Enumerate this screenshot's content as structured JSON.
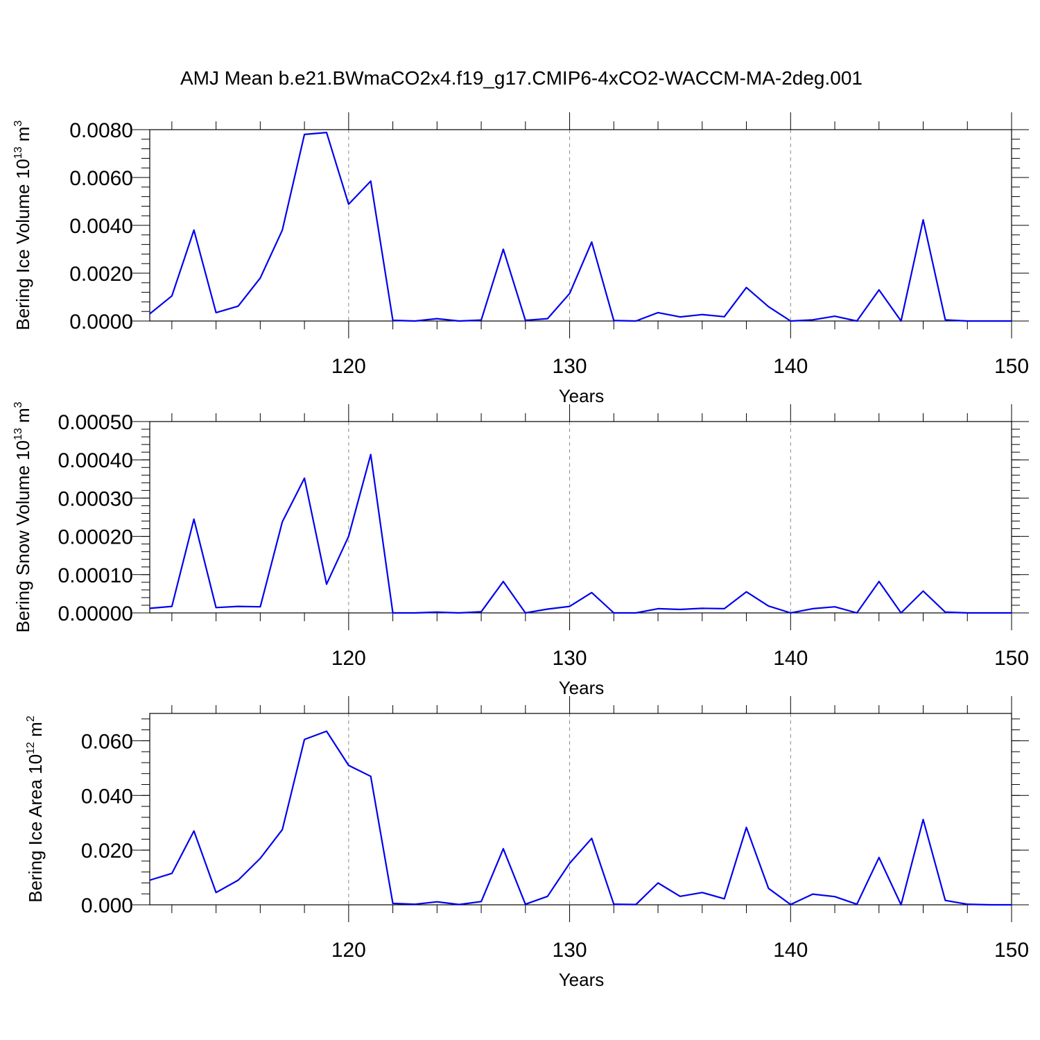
{
  "title": "AMJ Mean b.e21.BWmaCO2x4.f19_g17.CMIP6-4xCO2-WACCM-MA-2deg.001",
  "colors": {
    "line": "#0000ee",
    "axis": "#000000",
    "grid": "#888888"
  },
  "chart_data": [
    {
      "type": "line",
      "xlabel": "Years",
      "ylabel": {
        "main": "Bering Ice Volume 10",
        "exp": "13",
        "unit": " m",
        "unit_exp": "3"
      },
      "xlim": [
        111,
        150
      ],
      "ylim": [
        0,
        0.008
      ],
      "x_ticks": [
        120,
        130,
        140,
        150
      ],
      "x_tick_labels": [
        "120",
        "130",
        "140",
        "150"
      ],
      "y_ticks": [
        0,
        0.002,
        0.004,
        0.006,
        0.008
      ],
      "y_tick_labels": [
        "0.0000",
        "0.0020",
        "0.0040",
        "0.0060",
        "0.0080"
      ],
      "grid": "dashed vertical at major x ticks",
      "x": [
        111,
        112,
        113,
        114,
        115,
        116,
        117,
        118,
        119,
        120,
        121,
        122,
        123,
        124,
        125,
        126,
        127,
        128,
        129,
        130,
        131,
        132,
        133,
        134,
        135,
        136,
        137,
        138,
        139,
        140,
        141,
        142,
        143,
        144,
        145,
        146,
        147,
        148,
        149,
        150
      ],
      "values": [
        0.0003,
        0.00105,
        0.0038,
        0.00035,
        0.00062,
        0.0018,
        0.0038,
        0.0078,
        0.00788,
        0.00488,
        0.00585,
        3e-05,
        0.0,
        0.0001,
        0.0,
        4e-05,
        0.003,
        3e-05,
        0.0001,
        0.00115,
        0.0033,
        2e-05,
        0.0,
        0.00035,
        0.00017,
        0.00027,
        0.00018,
        0.0014,
        0.0006,
        0.0,
        5e-05,
        0.0002,
        0.0,
        0.0013,
        0.0,
        0.00423,
        5e-05,
        0.0,
        0.0,
        0.0
      ]
    },
    {
      "type": "line",
      "xlabel": "Years",
      "ylabel": {
        "main": "Bering Snow Volume 10",
        "exp": "13",
        "unit": " m",
        "unit_exp": "3"
      },
      "xlim": [
        111,
        150
      ],
      "ylim": [
        0,
        0.0005
      ],
      "x_ticks": [
        120,
        130,
        140,
        150
      ],
      "x_tick_labels": [
        "120",
        "130",
        "140",
        "150"
      ],
      "y_ticks": [
        0,
        0.0001,
        0.0002,
        0.0003,
        0.0004,
        0.0005
      ],
      "y_tick_labels": [
        "0.00000",
        "0.00010",
        "0.00020",
        "0.00030",
        "0.00040",
        "0.00050"
      ],
      "grid": "dashed vertical at major x ticks",
      "x": [
        111,
        112,
        113,
        114,
        115,
        116,
        117,
        118,
        119,
        120,
        121,
        122,
        123,
        124,
        125,
        126,
        127,
        128,
        129,
        130,
        131,
        132,
        133,
        134,
        135,
        136,
        137,
        138,
        139,
        140,
        141,
        142,
        143,
        144,
        145,
        146,
        147,
        148,
        149,
        150
      ],
      "values": [
        1.2e-05,
        1.7e-05,
        0.000245,
        1.4e-05,
        1.7e-05,
        1.6e-05,
        0.000238,
        0.000352,
        7.5e-05,
        0.0002,
        0.000414,
        0.0,
        0.0,
        2e-06,
        0.0,
        3e-06,
        8.2e-05,
        0.0,
        1e-05,
        1.7e-05,
        5.3e-05,
        0.0,
        0.0,
        1.1e-05,
        9e-06,
        1.2e-05,
        1.1e-05,
        5.5e-05,
        1.8e-05,
        0.0,
        1.1e-05,
        1.6e-05,
        0.0,
        8.2e-05,
        0.0,
        5.7e-05,
        2e-06,
        0.0,
        0.0,
        0.0
      ]
    },
    {
      "type": "line",
      "xlabel": "Years",
      "ylabel": {
        "main": "Bering Ice Area 10",
        "exp": "12",
        "unit": " m",
        "unit_exp": "2"
      },
      "xlim": [
        111,
        150
      ],
      "ylim": [
        0,
        0.07
      ],
      "x_ticks": [
        120,
        130,
        140,
        150
      ],
      "x_tick_labels": [
        "120",
        "130",
        "140",
        "150"
      ],
      "y_ticks": [
        0,
        0.02,
        0.04,
        0.06
      ],
      "y_tick_labels": [
        "0.000",
        "0.020",
        "0.040",
        "0.060"
      ],
      "grid": "dashed vertical at major x ticks",
      "x": [
        111,
        112,
        113,
        114,
        115,
        116,
        117,
        118,
        119,
        120,
        121,
        122,
        123,
        124,
        125,
        126,
        127,
        128,
        129,
        130,
        131,
        132,
        133,
        134,
        135,
        136,
        137,
        138,
        139,
        140,
        141,
        142,
        143,
        144,
        145,
        146,
        147,
        148,
        149,
        150
      ],
      "values": [
        0.009,
        0.0115,
        0.027,
        0.0045,
        0.009,
        0.017,
        0.0275,
        0.0605,
        0.0635,
        0.051,
        0.047,
        0.0005,
        0.0002,
        0.0011,
        0.0001,
        0.0012,
        0.0205,
        0.0002,
        0.0031,
        0.0152,
        0.0243,
        0.0002,
        0.0001,
        0.008,
        0.0031,
        0.0045,
        0.0022,
        0.0283,
        0.006,
        0.0001,
        0.0039,
        0.003,
        0.0002,
        0.0173,
        0.0,
        0.0312,
        0.0016,
        0.0002,
        0.0,
        0.0
      ]
    }
  ]
}
